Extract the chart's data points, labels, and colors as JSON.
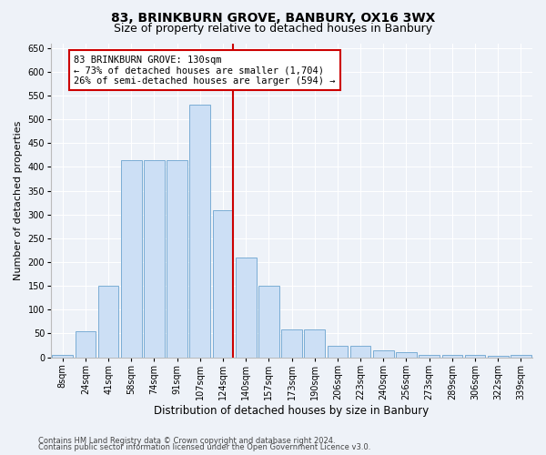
{
  "title1": "83, BRINKBURN GROVE, BANBURY, OX16 3WX",
  "title2": "Size of property relative to detached houses in Banbury",
  "xlabel": "Distribution of detached houses by size in Banbury",
  "ylabel": "Number of detached properties",
  "categories": [
    "8sqm",
    "24sqm",
    "41sqm",
    "58sqm",
    "74sqm",
    "91sqm",
    "107sqm",
    "124sqm",
    "140sqm",
    "157sqm",
    "173sqm",
    "190sqm",
    "206sqm",
    "223sqm",
    "240sqm",
    "256sqm",
    "273sqm",
    "289sqm",
    "306sqm",
    "322sqm",
    "339sqm"
  ],
  "values": [
    5,
    55,
    150,
    415,
    415,
    415,
    530,
    310,
    210,
    150,
    58,
    58,
    25,
    25,
    15,
    10,
    5,
    5,
    5,
    3,
    5
  ],
  "bar_color": "#ccdff5",
  "bar_edge_color": "#7aadd4",
  "ref_line_color": "#cc0000",
  "annotation_text": "83 BRINKBURN GROVE: 130sqm\n← 73% of detached houses are smaller (1,704)\n26% of semi-detached houses are larger (594) →",
  "annotation_box_color": "white",
  "annotation_box_edge": "#cc0000",
  "footnote1": "Contains HM Land Registry data © Crown copyright and database right 2024.",
  "footnote2": "Contains public sector information licensed under the Open Government Licence v3.0.",
  "ylim": [
    0,
    660
  ],
  "yticks": [
    0,
    50,
    100,
    150,
    200,
    250,
    300,
    350,
    400,
    450,
    500,
    550,
    600,
    650
  ],
  "background_color": "#eef2f8",
  "grid_color": "#ffffff",
  "title1_fontsize": 10,
  "title2_fontsize": 9,
  "xlabel_fontsize": 8.5,
  "ylabel_fontsize": 8,
  "tick_fontsize": 7,
  "annot_fontsize": 7.5,
  "footnote_fontsize": 6
}
